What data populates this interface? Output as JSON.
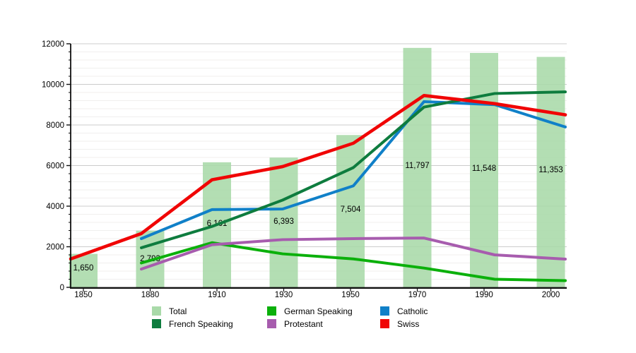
{
  "chart_data": {
    "type": "bar+line",
    "title": "",
    "xlabel": "",
    "ylabel": "",
    "ylim": [
      0,
      12000
    ],
    "y_ticks": [
      0,
      2000,
      4000,
      6000,
      8000,
      10000,
      12000
    ],
    "grid": {
      "major_step": 2000,
      "minor_step": 400,
      "grid_on": true
    },
    "x_tick_labels": [
      "1850",
      "1880",
      "1910",
      "1930",
      "1950",
      "1970",
      "1990",
      "2000"
    ],
    "bars": {
      "name": "Total",
      "color": "#a9daa9",
      "categories": [
        1850,
        1880,
        1910,
        1930,
        1950,
        1970,
        1990,
        2000
      ],
      "values": [
        1650,
        2793,
        6161,
        6393,
        7504,
        11797,
        11548,
        11353
      ],
      "labels": [
        "1,650",
        "2,793",
        "6,161",
        "6,393",
        "7,504",
        "11,797",
        "11,548",
        "11,353"
      ]
    },
    "line_years": [
      1860,
      1880,
      1900,
      1920,
      1940,
      1960,
      1980,
      2000
    ],
    "series": [
      {
        "name": "German Speaking",
        "color": "#0bb00b",
        "values": [
          null,
          1200,
          2200,
          1650,
          1400,
          950,
          400,
          330
        ]
      },
      {
        "name": "Protestant",
        "color": "#a75cae",
        "values": [
          null,
          900,
          2100,
          2350,
          2400,
          2430,
          1600,
          1390
        ]
      },
      {
        "name": "Catholic",
        "color": "#1080c8",
        "values": [
          null,
          2400,
          3830,
          3860,
          5000,
          9150,
          9000,
          7900
        ]
      },
      {
        "name": "French Speaking",
        "color": "#0e7c3e",
        "values": [
          null,
          1950,
          3000,
          4300,
          5900,
          8880,
          9550,
          9630
        ]
      },
      {
        "name": "Swiss",
        "color": "#f00505",
        "values": [
          1400,
          2650,
          5300,
          5950,
          7100,
          9450,
          9050,
          8500
        ]
      }
    ],
    "legend_position": "bottom",
    "legend_rows": [
      [
        {
          "label": "Total",
          "color": "#a9daa9"
        },
        {
          "label": "German Speaking",
          "color": "#0bb00b"
        },
        {
          "label": "Catholic",
          "color": "#1080c8"
        }
      ],
      [
        {
          "label": "French Speaking",
          "color": "#0e7c3e"
        },
        {
          "label": "Protestant",
          "color": "#a75cae"
        },
        {
          "label": "Swiss",
          "color": "#f00505"
        }
      ]
    ]
  }
}
